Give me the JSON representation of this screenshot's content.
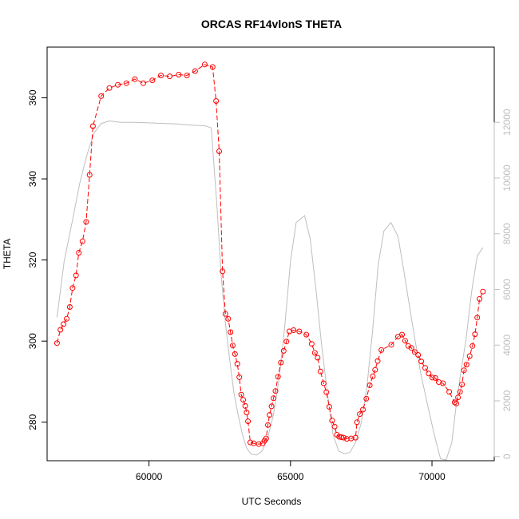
{
  "chart_data": {
    "type": "line",
    "title": "ORCAS RF14vlonS THETA",
    "xlabel": "UTC Seconds",
    "ylabel": "THETA",
    "xlim": [
      56400,
      72200
    ],
    "ylim": [
      270.5,
      372.5
    ],
    "y2lim": [
      -150,
      14700
    ],
    "x_ticks": [
      60000,
      65000,
      70000
    ],
    "y_ticks": [
      280,
      300,
      320,
      340,
      360
    ],
    "y2_ticks": [
      0,
      2000,
      4000,
      6000,
      8000,
      10000,
      12000
    ],
    "grid": false,
    "series": [
      {
        "axis": "left",
        "color": "#ff0000",
        "style": "points-with-lines",
        "x": [
          56750,
          56870,
          56980,
          57090,
          57200,
          57300,
          57420,
          57520,
          57650,
          57780,
          57900,
          58020,
          58310,
          58600,
          58900,
          59200,
          59500,
          59800,
          60120,
          60420,
          60730,
          61050,
          61340,
          61630,
          61970,
          62250,
          62370,
          62480,
          62600,
          62700,
          62800,
          62880,
          62960,
          63040,
          63120,
          63190,
          63260,
          63330,
          63400,
          63450,
          63500,
          63580,
          63700,
          63880,
          64020,
          64080,
          64140,
          64200,
          64260,
          64330,
          64400,
          64470,
          64560,
          64660,
          64760,
          64860,
          64960,
          65110,
          65310,
          65560,
          65750,
          65860,
          65960,
          66060,
          66170,
          66270,
          66370,
          66470,
          66560,
          66640,
          66720,
          66800,
          66880,
          66990,
          67140,
          67300,
          67350,
          67450,
          67560,
          67680,
          67800,
          67910,
          67990,
          68080,
          68210,
          68560,
          68800,
          68940,
          69050,
          69160,
          69270,
          69390,
          69510,
          69620,
          69760,
          69880,
          70010,
          70120,
          70240,
          70390,
          70610,
          70800,
          70860,
          70920,
          70990,
          71060,
          71130,
          71220,
          71330,
          71430,
          71520,
          71600,
          71680,
          71800
        ],
        "y": [
          299.5,
          302.8,
          304.2,
          305.5,
          308.4,
          313.1,
          316.2,
          321.8,
          324.6,
          329.4,
          341,
          353,
          360.4,
          362.4,
          363.2,
          363.6,
          364.6,
          363.6,
          364.3,
          365.5,
          365.3,
          365.7,
          365.5,
          366.6,
          368.2,
          367.6,
          359.2,
          346.8,
          317.2,
          306.7,
          305.5,
          302.2,
          298.9,
          296.8,
          294.4,
          291.1,
          286.8,
          285.5,
          284,
          282.4,
          280.2,
          275,
          274.8,
          274.6,
          274.8,
          275.4,
          276,
          279.3,
          281.8,
          283.9,
          285.9,
          287.7,
          291.2,
          294.7,
          297.6,
          299.9,
          302.4,
          302.7,
          302.4,
          301.6,
          299.3,
          297.1,
          295.9,
          292.5,
          289.6,
          287.4,
          283.8,
          280.4,
          278.9,
          276.9,
          276.4,
          276.3,
          276.2,
          275.9,
          276,
          276.2,
          280,
          282,
          283.1,
          285.8,
          289.1,
          291.3,
          292.9,
          295.1,
          297.8,
          299.1,
          301.1,
          301.6,
          300.1,
          298.8,
          298.3,
          297.3,
          296.6,
          295,
          293.4,
          292,
          291,
          290.9,
          289.9,
          289.6,
          287.5,
          284.9,
          284.6,
          286.1,
          287.5,
          289.3,
          292.8,
          294.2,
          296.3,
          298.8,
          301.7,
          305.8,
          310.4,
          312.2
        ]
      },
      {
        "axis": "right",
        "color": "#bebebe",
        "style": "line",
        "x": [
          56750,
          57000,
          57300,
          57550,
          57800,
          58050,
          58300,
          58600,
          59000,
          59500,
          60000,
          60500,
          61000,
          61500,
          62000,
          62200,
          62400,
          62550,
          62700,
          62850,
          63000,
          63150,
          63300,
          63450,
          63600,
          63800,
          64000,
          64200,
          64400,
          64600,
          64800,
          65000,
          65200,
          65500,
          65700,
          65900,
          66100,
          66300,
          66500,
          66700,
          66900,
          67100,
          67300,
          67500,
          67700,
          67900,
          68100,
          68300,
          68550,
          68800,
          69000,
          69300,
          69600,
          69900,
          70100,
          70300,
          70500,
          70700,
          70850,
          71000,
          71200,
          71400,
          71600,
          71800
        ],
        "y": [
          5000,
          7000,
          8500,
          9800,
          10800,
          11600,
          11950,
          12050,
          12000,
          12000,
          11980,
          11960,
          11940,
          11900,
          11870,
          11800,
          9000,
          6500,
          4800,
          3500,
          2300,
          1500,
          800,
          300,
          100,
          50,
          200,
          700,
          1500,
          2800,
          4700,
          7000,
          8400,
          8650,
          7800,
          6000,
          4000,
          2300,
          800,
          200,
          100,
          150,
          500,
          1200,
          2500,
          4500,
          6900,
          8100,
          8400,
          7900,
          6700,
          4800,
          3000,
          1600,
          700,
          -80,
          -120,
          500,
          1800,
          2900,
          4200,
          5900,
          7200,
          7500
        ]
      }
    ]
  }
}
